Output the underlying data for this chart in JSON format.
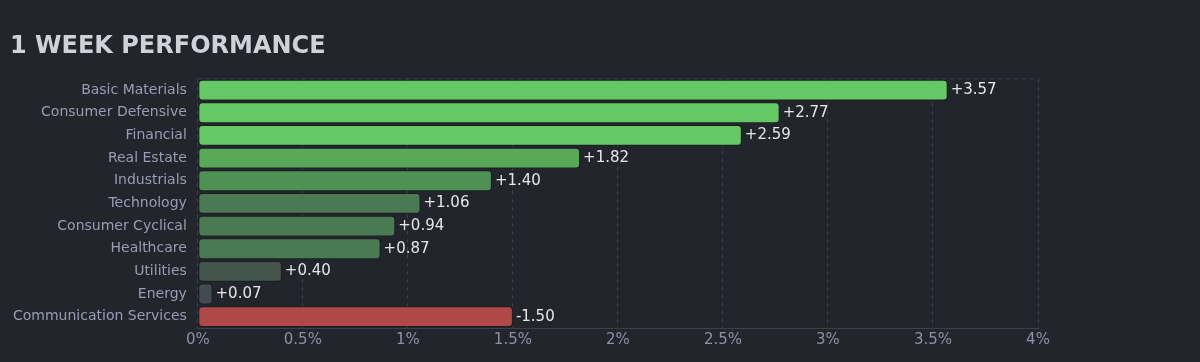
{
  "chart_data": {
    "type": "bar",
    "orientation": "horizontal",
    "title": "1 WEEK PERFORMANCE",
    "categories": [
      "Basic Materials",
      "Consumer Defensive",
      "Financial",
      "Real Estate",
      "Industrials",
      "Technology",
      "Consumer Cyclical",
      "Healthcare",
      "Utilities",
      "Energy",
      "Communication Services"
    ],
    "values": [
      3.57,
      2.77,
      2.59,
      1.82,
      1.4,
      1.06,
      0.94,
      0.87,
      0.4,
      0.07,
      -1.5
    ],
    "base": [
      0,
      0,
      0,
      0,
      0,
      0,
      0,
      0,
      0,
      0,
      1.5
    ],
    "value_labels": [
      "+3.57",
      "+2.77",
      "+2.59",
      "+1.82",
      "+1.40",
      "+1.06",
      "+0.94",
      "+0.87",
      "+0.40",
      "+0.07",
      "-1.50"
    ],
    "colors": [
      "#64c864",
      "#64c864",
      "#64c864",
      "#58a858",
      "#4f9055",
      "#4a7a52",
      "#4a7a52",
      "#4a7a52",
      "#44564b",
      "#434a52",
      "#b04848"
    ],
    "xlim": [
      0,
      4
    ],
    "xticks": [
      {
        "value": 0,
        "label": "0%"
      },
      {
        "value": 0.5,
        "label": "0.5%"
      },
      {
        "value": 1,
        "label": "1%"
      },
      {
        "value": 1.5,
        "label": "1.5%"
      },
      {
        "value": 2,
        "label": "2%"
      },
      {
        "value": 2.5,
        "label": "2.5%"
      },
      {
        "value": 3,
        "label": "3%"
      },
      {
        "value": 3.5,
        "label": "3.5%"
      },
      {
        "value": 4,
        "label": "4%"
      }
    ],
    "grid": "x",
    "legend": false
  }
}
